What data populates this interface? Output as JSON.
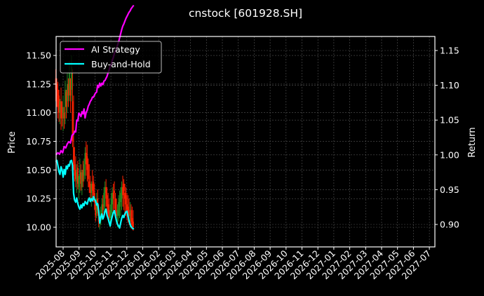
{
  "chart_data": {
    "type": "line",
    "title": "cnstock [601928.SH]",
    "xlabel": "",
    "ylabel": "Price",
    "ylabel_right": "Return",
    "ylim": [
      9.83,
      11.66
    ],
    "ylim_right": [
      0.878,
      1.17
    ],
    "grid": true,
    "legend_position": "upper left",
    "x_tick_labels": [
      "2025-08",
      "2025-09",
      "2025-10",
      "2025-11",
      "2025-12",
      "2026-01",
      "2026-02",
      "2026-03",
      "2026-04",
      "2026-05",
      "2026-06",
      "2026-07",
      "2026-08",
      "2026-09",
      "2026-10",
      "2026-11",
      "2026-12",
      "2027-01",
      "2027-02",
      "2027-03",
      "2027-04",
      "2027-05",
      "2027-06",
      "2027-07"
    ],
    "y_tick_labels": [
      "10.00",
      "10.25",
      "10.50",
      "10.75",
      "11.00",
      "11.25",
      "11.50"
    ],
    "y_tick_values": [
      10.0,
      10.25,
      10.5,
      10.75,
      11.0,
      11.25,
      11.5
    ],
    "y_right_tick_labels": [
      "0.90",
      "0.95",
      "1.00",
      "1.05",
      "1.10",
      "1.15"
    ],
    "y_right_tick_values": [
      0.9,
      0.95,
      1.0,
      1.05,
      1.1,
      1.15
    ],
    "series": [
      {
        "name": "AI Strategy",
        "axis": "right",
        "color": "#ff00ff",
        "x_days": [
          -14,
          -10,
          -7,
          -4,
          -1,
          2,
          5,
          8,
          11,
          14,
          17,
          20,
          22,
          24,
          26,
          28,
          30,
          32,
          34,
          36,
          38,
          40,
          42,
          44,
          46,
          48,
          50,
          52,
          54,
          56,
          58,
          60,
          62,
          64,
          66,
          68,
          70,
          72,
          74,
          76,
          78,
          80,
          82,
          84,
          86,
          88,
          90,
          92,
          94,
          96,
          98,
          100,
          102,
          104,
          106,
          108,
          110,
          112,
          114,
          116,
          118,
          120,
          122,
          124,
          126,
          128,
          130,
          132,
          134,
          135
        ],
        "values": [
          1.0,
          1.003,
          1.001,
          1.006,
          1.003,
          1.012,
          1.01,
          1.016,
          1.019,
          1.017,
          1.028,
          1.03,
          1.034,
          1.033,
          1.05,
          1.049,
          1.06,
          1.058,
          1.055,
          1.062,
          1.059,
          1.066,
          1.053,
          1.061,
          1.064,
          1.07,
          1.073,
          1.077,
          1.079,
          1.083,
          1.083,
          1.086,
          1.089,
          1.09,
          1.1,
          1.097,
          1.103,
          1.099,
          1.103,
          1.101,
          1.106,
          1.107,
          1.11,
          1.113,
          1.118,
          1.122,
          1.128,
          1.13,
          1.136,
          1.14,
          1.146,
          1.15,
          1.153,
          1.158,
          1.162,
          1.168,
          1.174,
          1.18,
          1.185,
          1.188,
          1.192,
          1.196,
          1.199,
          1.202,
          1.205,
          1.207,
          1.21,
          1.212,
          1.214,
          1.215
        ]
      },
      {
        "name": "Buy-and-Hold",
        "axis": "right",
        "color": "#00ffff",
        "x_days": [
          -14,
          -12,
          -10,
          -8,
          -6,
          -4,
          -2,
          0,
          2,
          4,
          6,
          8,
          10,
          12,
          14,
          16,
          18,
          20,
          22,
          24,
          26,
          28,
          30,
          32,
          34,
          36,
          38,
          40,
          42,
          44,
          46,
          48,
          50,
          52,
          54,
          56,
          58,
          60,
          62,
          64,
          66,
          68,
          70,
          72,
          74,
          76,
          78,
          80,
          82,
          84,
          86,
          88,
          90,
          92,
          94,
          96,
          98,
          100,
          102,
          104,
          106,
          108,
          110,
          112,
          114,
          116,
          118,
          120,
          122,
          124,
          126,
          128,
          130,
          132,
          134,
          135
        ],
        "values": [
          0.99,
          0.992,
          0.985,
          0.976,
          0.972,
          0.983,
          0.978,
          0.968,
          0.979,
          0.972,
          0.984,
          0.98,
          0.986,
          0.984,
          0.991,
          0.992,
          0.985,
          0.945,
          0.935,
          0.932,
          0.938,
          0.93,
          0.925,
          0.922,
          0.928,
          0.924,
          0.93,
          0.927,
          0.933,
          0.931,
          0.929,
          0.935,
          0.938,
          0.933,
          0.937,
          0.934,
          0.94,
          0.936,
          0.934,
          0.928,
          0.93,
          0.919,
          0.902,
          0.91,
          0.915,
          0.908,
          0.912,
          0.919,
          0.922,
          0.913,
          0.909,
          0.903,
          0.898,
          0.906,
          0.912,
          0.917,
          0.92,
          0.912,
          0.905,
          0.9,
          0.898,
          0.895,
          0.902,
          0.909,
          0.913,
          0.91,
          0.915,
          0.918,
          0.919,
          0.912,
          0.905,
          0.9,
          0.897,
          0.895,
          0.894,
          0.893
        ]
      }
    ],
    "candles": {
      "axis": "left",
      "up_color": "#228b22",
      "down_color": "#ff2200",
      "x_days": [
        -14,
        -12,
        -10,
        -8,
        -6,
        -4,
        -2,
        0,
        2,
        4,
        6,
        8,
        10,
        12,
        14,
        16,
        18,
        20,
        22,
        24,
        26,
        28,
        30,
        32,
        34,
        36,
        38,
        40,
        42,
        44,
        46,
        48,
        50,
        52,
        54,
        56,
        58,
        60,
        62,
        64,
        66,
        68,
        70,
        72,
        74,
        76,
        78,
        80,
        82,
        84,
        86,
        88,
        90,
        92,
        94,
        96,
        98,
        100,
        102,
        104,
        106,
        108,
        110,
        112,
        114,
        116,
        118,
        120,
        122,
        124,
        126,
        128,
        130,
        132,
        134
      ],
      "high": [
        11.38,
        11.3,
        11.27,
        11.2,
        11.12,
        11.22,
        11.1,
        11.15,
        11.05,
        11.28,
        11.2,
        11.35,
        11.3,
        11.45,
        11.3,
        11.5,
        11.38,
        11.15,
        10.7,
        10.62,
        10.55,
        10.58,
        10.45,
        10.6,
        10.55,
        10.5,
        10.58,
        10.6,
        10.7,
        10.75,
        10.72,
        10.6,
        10.55,
        10.45,
        10.4,
        10.5,
        10.45,
        10.38,
        10.25,
        10.3,
        10.33,
        10.2,
        10.1,
        10.18,
        10.25,
        10.28,
        10.35,
        10.4,
        10.42,
        10.35,
        10.3,
        10.25,
        10.2,
        10.3,
        10.35,
        10.38,
        10.4,
        10.3,
        10.25,
        10.2,
        10.28,
        10.32,
        10.35,
        10.4,
        10.45,
        10.42,
        10.38,
        10.35,
        10.3,
        10.28,
        10.25,
        10.22,
        10.2,
        10.18,
        10.15
      ],
      "low": [
        11.1,
        11.05,
        10.95,
        10.92,
        10.9,
        10.85,
        10.88,
        10.84,
        10.86,
        10.9,
        10.95,
        11.0,
        11.05,
        11.1,
        11.0,
        11.1,
        10.7,
        10.5,
        10.4,
        10.35,
        10.3,
        10.33,
        10.25,
        10.3,
        10.32,
        10.28,
        10.35,
        10.4,
        10.42,
        10.45,
        10.4,
        10.35,
        10.3,
        10.22,
        10.18,
        10.25,
        10.22,
        10.15,
        10.05,
        10.08,
        10.1,
        10.0,
        9.98,
        10.02,
        10.06,
        10.08,
        10.12,
        10.15,
        10.18,
        10.12,
        10.08,
        10.03,
        10.0,
        10.06,
        10.1,
        10.14,
        10.16,
        10.08,
        10.03,
        10.0,
        10.05,
        10.08,
        10.1,
        10.15,
        10.18,
        10.15,
        10.12,
        10.1,
        10.06,
        10.04,
        10.02,
        10.0,
        9.99,
        9.98,
        9.97
      ],
      "open": [
        11.3,
        11.25,
        11.2,
        11.15,
        11.0,
        11.1,
        11.05,
        10.95,
        11.0,
        11.05,
        11.18,
        11.1,
        11.25,
        11.2,
        11.3,
        11.2,
        11.1,
        10.7,
        10.55,
        10.5,
        10.4,
        10.52,
        10.35,
        10.42,
        10.48,
        10.35,
        10.5,
        10.45,
        10.55,
        10.65,
        10.62,
        10.55,
        10.4,
        10.38,
        10.3,
        10.38,
        10.4,
        10.3,
        10.2,
        10.12,
        10.25,
        10.15,
        10.05,
        10.08,
        10.12,
        10.2,
        10.18,
        10.3,
        10.35,
        10.28,
        10.2,
        10.15,
        10.08,
        10.12,
        10.2,
        10.3,
        10.32,
        10.25,
        10.15,
        10.1,
        10.1,
        10.18,
        10.22,
        10.25,
        10.35,
        10.38,
        10.3,
        10.28,
        10.2,
        10.18,
        10.15,
        10.1,
        10.15,
        10.08,
        10.05
      ],
      "close": [
        11.2,
        11.15,
        11.05,
        11.0,
        11.1,
        10.95,
        11.0,
        11.05,
        10.95,
        11.2,
        11.05,
        11.25,
        11.15,
        11.35,
        11.15,
        11.4,
        10.75,
        10.55,
        10.45,
        10.42,
        10.48,
        10.38,
        10.45,
        10.5,
        10.38,
        10.48,
        10.4,
        10.55,
        10.65,
        10.55,
        10.5,
        10.42,
        10.35,
        10.3,
        10.38,
        10.32,
        10.28,
        10.22,
        10.1,
        10.25,
        10.15,
        10.05,
        10.1,
        10.15,
        10.2,
        10.15,
        10.3,
        10.35,
        10.25,
        10.18,
        10.12,
        10.08,
        10.15,
        10.25,
        10.3,
        10.25,
        10.3,
        10.15,
        10.1,
        10.15,
        10.22,
        10.25,
        10.3,
        10.35,
        10.28,
        10.32,
        10.25,
        10.2,
        10.15,
        10.12,
        10.1,
        10.12,
        10.05,
        10.02,
        10.0
      ]
    },
    "legend": [
      {
        "label": "AI Strategy",
        "color": "#ff00ff"
      },
      {
        "label": "Buy-and-Hold",
        "color": "#00ffff"
      }
    ],
    "colors": {
      "background": "#000000",
      "axes": "#ffffff",
      "grid": "#555555"
    }
  }
}
